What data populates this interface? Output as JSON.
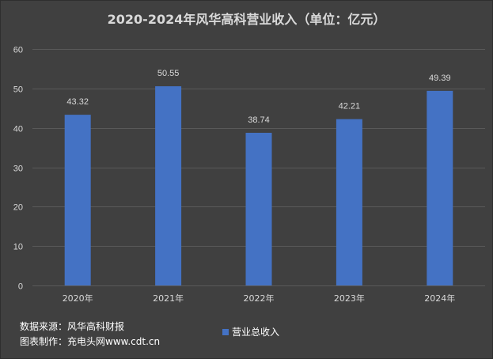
{
  "chart_data": {
    "type": "bar",
    "title": "2020-2024年风华高科营业收入（单位：亿元）",
    "categories": [
      "2020年",
      "2021年",
      "2022年",
      "2023年",
      "2024年"
    ],
    "series": [
      {
        "name": "营业总收入",
        "values": [
          43.32,
          50.55,
          38.74,
          42.21,
          49.39
        ],
        "color": "#4472c4"
      }
    ],
    "data_labels": [
      "43.32",
      "50.55",
      "38.74",
      "42.21",
      "49.39"
    ],
    "ylim": [
      0,
      60
    ],
    "yticks": [
      0,
      10,
      20,
      30,
      40,
      50,
      60
    ],
    "grid": true,
    "legend": "bottom"
  },
  "colors": {
    "background": "#404040",
    "grid": "#595959",
    "text": "#d9d9d9",
    "bar": "#4472c4"
  },
  "footer": {
    "source": "数据来源：风华高科财报",
    "credit": "图表制作：充电头网www.cdt.cn"
  }
}
